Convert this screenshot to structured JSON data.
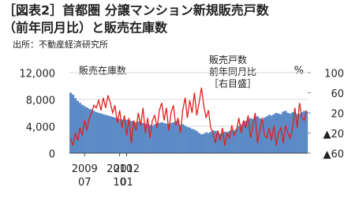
{
  "chart_data": {
    "type": "bar_line",
    "title": "［図表2］首都圏 分譲マンション新規販売戸数",
    "title_line2": "（前年同月比）と販売在庫数",
    "source": "出所：不動産経済研究所",
    "y2_unit": "%",
    "categories": [
      null,
      null,
      null,
      null,
      null,
      null,
      [
        "2009",
        "07"
      ],
      null,
      null,
      null,
      null,
      null,
      null,
      null,
      null,
      null,
      null,
      null,
      null,
      null,
      null,
      [
        "2010",
        "10"
      ],
      null,
      null,
      [
        "2012",
        "01"
      ],
      null,
      null,
      null,
      null,
      null,
      null,
      null,
      null,
      null,
      null,
      null,
      null,
      null,
      null,
      null,
      null,
      null,
      null,
      null,
      null,
      null,
      null,
      null,
      null,
      null,
      null,
      null,
      null,
      null,
      null,
      null,
      null,
      null,
      null,
      null,
      null,
      null,
      null,
      null,
      null,
      null,
      null,
      null,
      null,
      null,
      null,
      null,
      null,
      null,
      null,
      null,
      null,
      null,
      null,
      null,
      null,
      null,
      null,
      null,
      null,
      null,
      null,
      null,
      null,
      null,
      null,
      null,
      null,
      null,
      null,
      null,
      null,
      null,
      null,
      null,
      null,
      null
    ],
    "series": [
      {
        "name": "販売在庫数",
        "color": "#5b8ac6",
        "type": "bar",
        "values": [
          9000,
          8700,
          8200,
          7800,
          7500,
          7200,
          7000,
          6800,
          6600,
          6500,
          6300,
          6100,
          6000,
          5900,
          5800,
          5700,
          5600,
          5500,
          5400,
          5300,
          5200,
          5100,
          5000,
          4900,
          5000,
          4900,
          4800,
          4700,
          4600,
          4700,
          4600,
          4500,
          4400,
          4300,
          4200,
          4100,
          4300,
          4400,
          4500,
          4600,
          4500,
          4400,
          4300,
          4500,
          4600,
          4700,
          4800,
          4200,
          4300,
          4100,
          3900,
          3800,
          3600,
          3500,
          3300,
          3000,
          2800,
          2900,
          3100,
          3000,
          3200,
          3400,
          3300,
          3100,
          2900,
          3000,
          3200,
          3100,
          3300,
          3500,
          3400,
          3600,
          4000,
          4300,
          4500,
          4800,
          5000,
          5200,
          5100,
          5400,
          5500,
          5200,
          5000,
          5300,
          5500,
          5700,
          5600,
          5800,
          6000,
          5900,
          5800,
          6200,
          6300,
          6000,
          5900,
          6100,
          6000,
          5800,
          5900,
          6100,
          6300,
          6200
        ]
      },
      {
        "name": "販売戸数 前年同月比 ［右目盛］",
        "color": "#e0201b",
        "type": "line",
        "axis": "y2",
        "values": [
          -30,
          -45,
          -20,
          -35,
          -10,
          -25,
          5,
          -15,
          10,
          20,
          35,
          30,
          45,
          25,
          50,
          30,
          55,
          40,
          20,
          35,
          0,
          25,
          -10,
          15,
          -25,
          10,
          -40,
          5,
          -15,
          20,
          -5,
          30,
          -20,
          10,
          -30,
          5,
          15,
          -10,
          25,
          40,
          5,
          30,
          -15,
          20,
          35,
          -5,
          10,
          -20,
          25,
          50,
          10,
          45,
          20,
          60,
          15,
          40,
          70,
          35,
          10,
          25,
          -10,
          -20,
          -40,
          -15,
          -35,
          -10,
          -45,
          -20,
          -30,
          -5,
          -25,
          -15,
          10,
          -20,
          5,
          -10,
          15,
          -30,
          -5,
          20,
          -40,
          -15,
          10,
          -25,
          -30,
          -10,
          -35,
          -5,
          -45,
          -20,
          -10,
          -40,
          -5,
          -20,
          -30,
          -10,
          30,
          -10,
          40,
          10,
          5,
          25
        ]
      }
    ],
    "ylim": [
      0,
      12000
    ],
    "yticks": [
      {
        "value": 12000,
        "label": "12,000"
      },
      {
        "value": 8000,
        "label": "8,000"
      },
      {
        "value": 4000,
        "label": "4,000"
      },
      0
    ],
    "y2lim": [
      -60,
      100
    ],
    "y2ticks": [
      100,
      60,
      20,
      {
        "value": -20,
        "label": "▲20"
      },
      {
        "value": -60,
        "label": "▲60"
      }
    ],
    "grid": true
  }
}
